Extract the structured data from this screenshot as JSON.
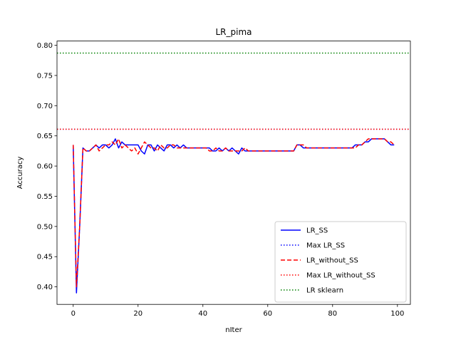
{
  "chart_data": {
    "type": "line",
    "title": "LR_pima",
    "xlabel": "nIter",
    "ylabel": "Accuracy",
    "xlim": [
      -5,
      104
    ],
    "ylim": [
      0.371,
      0.807
    ],
    "xticks": [
      0,
      20,
      40,
      60,
      80,
      100
    ],
    "xtick_labels": [
      "0",
      "20",
      "40",
      "60",
      "80",
      "100"
    ],
    "yticks": [
      0.4,
      0.45,
      0.5,
      0.55,
      0.6,
      0.65,
      0.7,
      0.75,
      0.8
    ],
    "ytick_labels": [
      "0.40",
      "0.45",
      "0.50",
      "0.55",
      "0.60",
      "0.65",
      "0.70",
      "0.75",
      "0.80"
    ],
    "grid": false,
    "legend_position": "lower right",
    "series": [
      {
        "name": "LR_SS",
        "kind": "line",
        "style": "solid",
        "color": "#0000ff",
        "x": [
          0,
          1,
          2,
          3,
          4,
          5,
          6,
          7,
          8,
          9,
          10,
          11,
          12,
          13,
          14,
          15,
          16,
          17,
          18,
          19,
          20,
          21,
          22,
          23,
          24,
          25,
          26,
          27,
          28,
          29,
          30,
          31,
          32,
          33,
          34,
          35,
          36,
          37,
          38,
          39,
          40,
          41,
          42,
          43,
          44,
          45,
          46,
          47,
          48,
          49,
          50,
          51,
          52,
          53,
          54,
          55,
          56,
          57,
          58,
          59,
          60,
          61,
          62,
          63,
          64,
          65,
          66,
          67,
          68,
          69,
          70,
          71,
          72,
          73,
          74,
          75,
          76,
          77,
          78,
          79,
          80,
          81,
          82,
          83,
          84,
          85,
          86,
          87,
          88,
          89,
          90,
          91,
          92,
          93,
          94,
          95,
          96,
          97,
          98,
          99
        ],
        "y": [
          0.635,
          0.39,
          0.5,
          0.63,
          0.625,
          0.625,
          0.63,
          0.635,
          0.63,
          0.635,
          0.635,
          0.63,
          0.635,
          0.645,
          0.63,
          0.64,
          0.635,
          0.635,
          0.635,
          0.635,
          0.635,
          0.625,
          0.62,
          0.635,
          0.635,
          0.625,
          0.635,
          0.63,
          0.625,
          0.635,
          0.635,
          0.63,
          0.635,
          0.63,
          0.635,
          0.63,
          0.63,
          0.63,
          0.63,
          0.63,
          0.63,
          0.63,
          0.63,
          0.625,
          0.625,
          0.63,
          0.625,
          0.63,
          0.625,
          0.63,
          0.625,
          0.62,
          0.63,
          0.625,
          0.625,
          0.625,
          0.625,
          0.625,
          0.625,
          0.625,
          0.625,
          0.625,
          0.625,
          0.625,
          0.625,
          0.625,
          0.625,
          0.625,
          0.625,
          0.635,
          0.635,
          0.63,
          0.63,
          0.63,
          0.63,
          0.63,
          0.63,
          0.63,
          0.63,
          0.63,
          0.63,
          0.63,
          0.63,
          0.63,
          0.63,
          0.63,
          0.63,
          0.635,
          0.635,
          0.635,
          0.64,
          0.64,
          0.645,
          0.645,
          0.645,
          0.645,
          0.645,
          0.64,
          0.635,
          0.635
        ]
      },
      {
        "name": "Max LR_SS",
        "kind": "hline",
        "style": "dotted",
        "color": "#0000ff",
        "value": 0.661
      },
      {
        "name": "LR_without_SS",
        "kind": "line",
        "style": "dashed",
        "color": "#ff0000",
        "x": [
          0,
          1,
          2,
          3,
          4,
          5,
          6,
          7,
          8,
          9,
          10,
          11,
          12,
          13,
          14,
          15,
          16,
          17,
          18,
          19,
          20,
          21,
          22,
          23,
          24,
          25,
          26,
          27,
          28,
          29,
          30,
          31,
          32,
          33,
          34,
          35,
          36,
          37,
          38,
          39,
          40,
          41,
          42,
          43,
          44,
          45,
          46,
          47,
          48,
          49,
          50,
          51,
          52,
          53,
          54,
          55,
          56,
          57,
          58,
          59,
          60,
          61,
          62,
          63,
          64,
          65,
          66,
          67,
          68,
          69,
          70,
          71,
          72,
          73,
          74,
          75,
          76,
          77,
          78,
          79,
          80,
          81,
          82,
          83,
          84,
          85,
          86,
          87,
          88,
          89,
          90,
          91,
          92,
          93,
          94,
          95,
          96,
          97,
          98,
          99
        ],
        "y": [
          0.635,
          0.4,
          0.5,
          0.63,
          0.625,
          0.625,
          0.63,
          0.635,
          0.625,
          0.63,
          0.635,
          0.635,
          0.64,
          0.635,
          0.645,
          0.63,
          0.635,
          0.63,
          0.625,
          0.63,
          0.62,
          0.63,
          0.64,
          0.635,
          0.63,
          0.63,
          0.625,
          0.635,
          0.63,
          0.63,
          0.635,
          0.635,
          0.63,
          0.63,
          0.63,
          0.63,
          0.63,
          0.63,
          0.63,
          0.63,
          0.63,
          0.63,
          0.625,
          0.625,
          0.63,
          0.625,
          0.625,
          0.63,
          0.625,
          0.625,
          0.625,
          0.625,
          0.625,
          0.63,
          0.625,
          0.625,
          0.625,
          0.625,
          0.625,
          0.625,
          0.625,
          0.625,
          0.625,
          0.625,
          0.625,
          0.625,
          0.625,
          0.625,
          0.625,
          0.635,
          0.635,
          0.635,
          0.63,
          0.63,
          0.63,
          0.63,
          0.63,
          0.63,
          0.63,
          0.63,
          0.63,
          0.63,
          0.63,
          0.63,
          0.63,
          0.63,
          0.63,
          0.63,
          0.635,
          0.635,
          0.64,
          0.645,
          0.645,
          0.645,
          0.645,
          0.645,
          0.645,
          0.64,
          0.64,
          0.635
        ]
      },
      {
        "name": "Max LR_without_SS",
        "kind": "hline",
        "style": "dotted",
        "color": "#ff0000",
        "value": 0.661
      },
      {
        "name": "LR sklearn",
        "kind": "hline",
        "style": "dotted",
        "color": "#008000",
        "value": 0.787
      }
    ]
  }
}
